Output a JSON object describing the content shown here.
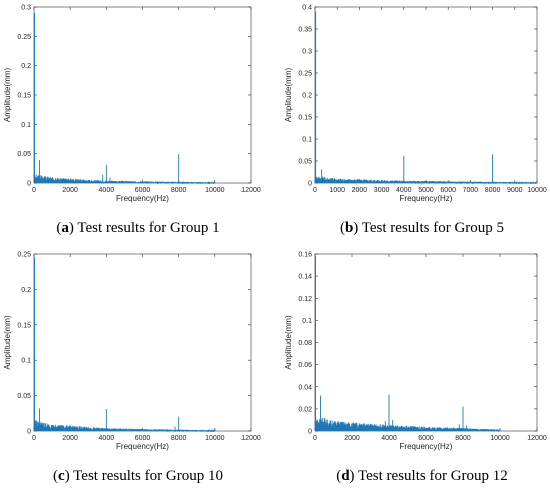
{
  "series_color": "#1f77b4",
  "chart_data": [
    {
      "type": "line",
      "caption_letter": "a",
      "caption_text": " Test results for Group 1",
      "xlabel": "Frequency(Hz)",
      "ylabel": "Amplitude(mm)",
      "xlim": [
        0,
        12000
      ],
      "ylim": [
        0,
        0.3
      ],
      "xticks": [
        "0",
        "2000",
        "4000",
        "6000",
        "8000",
        "10000",
        "12000"
      ],
      "yticks": [
        "0",
        "0.05",
        "0.1",
        "0.15",
        "0.2",
        "0.25",
        "0.3"
      ],
      "x_end": 10000,
      "floor": {
        "x": [
          0,
          1000,
          4000,
          8000,
          10000
        ],
        "y": [
          0.012,
          0.007,
          0.003,
          0.0015,
          0.0005
        ]
      },
      "peaks": [
        {
          "x": 30,
          "y": 0.29
        },
        {
          "x": 300,
          "y": 0.039
        },
        {
          "x": 3800,
          "y": 0.014
        },
        {
          "x": 4000,
          "y": 0.031
        },
        {
          "x": 4200,
          "y": 0.009
        },
        {
          "x": 8000,
          "y": 0.049
        }
      ]
    },
    {
      "type": "line",
      "caption_letter": "b",
      "caption_text": " Test results for Group 5",
      "xlabel": "Frequency(Hz)",
      "ylabel": "Amplitude(mm)",
      "xlim": [
        0,
        10000
      ],
      "ylim": [
        0,
        0.4
      ],
      "xticks": [
        "0",
        "1000",
        "2000",
        "3000",
        "4000",
        "5000",
        "6000",
        "7000",
        "8000",
        "9000",
        "10000"
      ],
      "yticks": [
        "0",
        "0.05",
        "0.1",
        "0.15",
        "0.2",
        "0.25",
        "0.3",
        "0.35",
        "0.4"
      ],
      "x_end": 10000,
      "floor": {
        "x": [
          0,
          1000,
          4000,
          8000,
          10000
        ],
        "y": [
          0.013,
          0.008,
          0.004,
          0.002,
          0.001
        ]
      },
      "peaks": [
        {
          "x": 30,
          "y": 0.39
        },
        {
          "x": 300,
          "y": 0.031
        },
        {
          "x": 4000,
          "y": 0.062
        },
        {
          "x": 8000,
          "y": 0.065
        }
      ]
    },
    {
      "type": "line",
      "caption_letter": "c",
      "caption_text": " Test results for Group 10",
      "xlabel": "Frequency(Hz)",
      "ylabel": "Amplitude(mm)",
      "xlim": [
        0,
        12000
      ],
      "ylim": [
        0,
        0.25
      ],
      "xticks": [
        "0",
        "2000",
        "4000",
        "6000",
        "8000",
        "10000",
        "12000"
      ],
      "yticks": [
        "0",
        "0.05",
        "0.1",
        "0.15",
        "0.2",
        "0.25"
      ],
      "x_end": 10000,
      "floor": {
        "x": [
          0,
          1000,
          4000,
          8000,
          10000
        ],
        "y": [
          0.012,
          0.007,
          0.003,
          0.0015,
          0.0005
        ]
      },
      "peaks": [
        {
          "x": 30,
          "y": 0.245
        },
        {
          "x": 300,
          "y": 0.032
        },
        {
          "x": 4000,
          "y": 0.031
        },
        {
          "x": 7800,
          "y": 0.006
        },
        {
          "x": 8000,
          "y": 0.02
        },
        {
          "x": 10000,
          "y": 0.004
        }
      ]
    },
    {
      "type": "line",
      "caption_letter": "d",
      "caption_text": " Test results for Group 12",
      "xlabel": "Frequency(Hz)",
      "ylabel": "Amplitude(mm)",
      "xlim": [
        0,
        12000
      ],
      "ylim": [
        0,
        0.16
      ],
      "xticks": [
        "0",
        "2000",
        "4000",
        "6000",
        "8000",
        "10000",
        "12000"
      ],
      "yticks": [
        "0",
        "0.02",
        "0.04",
        "0.06",
        "0.08",
        "0.1",
        "0.12",
        "0.14",
        "0.16"
      ],
      "x_end": 10000,
      "floor": {
        "x": [
          0,
          1000,
          4000,
          8000,
          10000
        ],
        "y": [
          0.01,
          0.007,
          0.004,
          0.002,
          0.001
        ]
      },
      "peaks": [
        {
          "x": 30,
          "y": 0.158
        },
        {
          "x": 300,
          "y": 0.032
        },
        {
          "x": 500,
          "y": 0.012
        },
        {
          "x": 3800,
          "y": 0.009
        },
        {
          "x": 4000,
          "y": 0.033
        },
        {
          "x": 4200,
          "y": 0.01
        },
        {
          "x": 7800,
          "y": 0.006
        },
        {
          "x": 8000,
          "y": 0.022
        },
        {
          "x": 8200,
          "y": 0.005
        },
        {
          "x": 10000,
          "y": 0.002
        }
      ]
    }
  ]
}
